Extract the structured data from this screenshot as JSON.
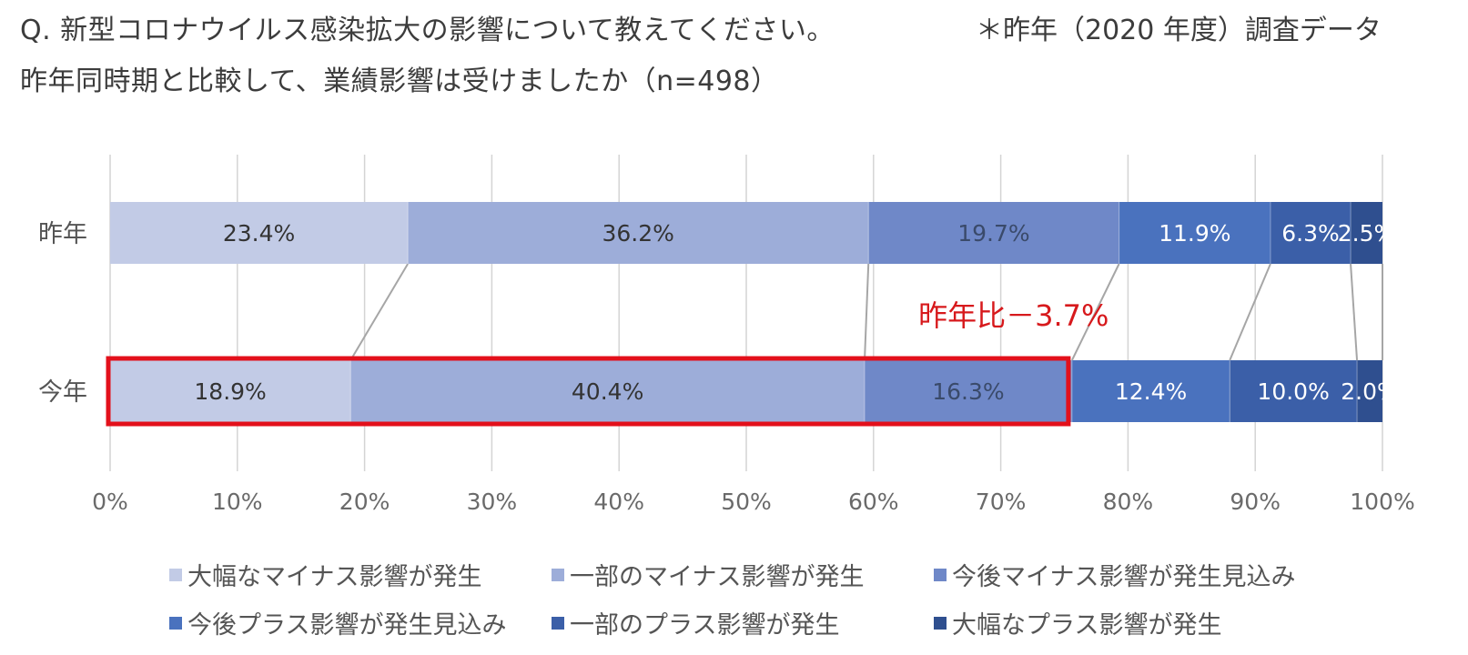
{
  "header": {
    "question": "Q. 新型コロナウイルス感染拡大の影響について教えてください。",
    "note": "＊昨年（2020 年度）調査データ",
    "subtitle": "昨年同時期と比較して、業績影響は受けましたか（n=498）"
  },
  "annotation": {
    "text": "昨年比－3.7%",
    "color": "#d7191c"
  },
  "highlight": {
    "row": "今年",
    "segments_covered": 3,
    "color": "#e3101b"
  },
  "chart_data": {
    "type": "bar",
    "orientation": "horizontal",
    "stacked": "percent",
    "categories": [
      "昨年",
      "今年"
    ],
    "series": [
      {
        "name": "大幅なマイナス影響が発生",
        "values": [
          23.4,
          18.9
        ],
        "labels": [
          "23.4%",
          "18.9%"
        ],
        "color": "#c2cbe6",
        "label_color": "#333333"
      },
      {
        "name": "一部のマイナス影響が発生",
        "values": [
          36.2,
          40.4
        ],
        "labels": [
          "36.2%",
          "40.4%"
        ],
        "color": "#9dadd9",
        "label_color": "#333333"
      },
      {
        "name": "今後マイナス影響が発生見込み",
        "values": [
          19.7,
          16.3
        ],
        "labels": [
          "19.7%",
          "16.3%"
        ],
        "color": "#6f88c8",
        "label_color": "#3a4a6a"
      },
      {
        "name": "今後プラス影響が発生見込み",
        "values": [
          11.9,
          12.4
        ],
        "labels": [
          "11.9%",
          "12.4%"
        ],
        "color": "#4a72be",
        "label_color": "#ffffff"
      },
      {
        "name": "一部のプラス影響が発生",
        "values": [
          6.3,
          10.0
        ],
        "labels": [
          "6.3%",
          "10.0%"
        ],
        "color": "#3b5fa8",
        "label_color": "#ffffff"
      },
      {
        "name": "大幅なプラス影響が発生",
        "values": [
          2.5,
          2.0
        ],
        "labels": [
          "2.5%",
          "2.0%"
        ],
        "color": "#2f4f8f",
        "label_color": "#ffffff"
      }
    ],
    "x_ticks": [
      "0%",
      "10%",
      "20%",
      "30%",
      "40%",
      "50%",
      "60%",
      "70%",
      "80%",
      "90%",
      "100%"
    ],
    "xlim": [
      0,
      100
    ],
    "grid": true,
    "series_lines": true,
    "legend_position": "bottom"
  }
}
